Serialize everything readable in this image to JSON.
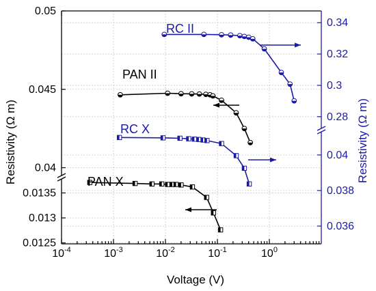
{
  "colors": {
    "left": "#000000",
    "right": "#1a1aa8",
    "grid": "#b5b5b5"
  },
  "chart_data": {
    "type": "scatter",
    "xlabel": "Voltage (V)",
    "ylabel_left": "Resistivity (Ω m)",
    "ylabel_right": "Resistivity (Ω m)",
    "xscale": "log",
    "xlim": [
      0.0001,
      10
    ],
    "x_ticks": [
      "10^-4",
      "10^-3",
      "10^-2",
      "10^-1",
      "10^0"
    ],
    "left_axis_upper": {
      "ylim": [
        0.0395,
        0.05
      ],
      "ticks": [
        "0.04",
        "0.045",
        "0.05"
      ]
    },
    "left_axis_lower": {
      "ylim": [
        0.01248,
        0.01378
      ],
      "ticks": [
        "0.0125",
        "0.013",
        "0.0135"
      ]
    },
    "right_axis_upper": {
      "ylim": [
        0.2725,
        0.3475
      ],
      "ticks": [
        "0.28",
        "0.3",
        "0.32",
        "0.34"
      ]
    },
    "right_axis_lower": {
      "ylim": [
        0.035,
        0.0413
      ],
      "ticks": [
        "0.036",
        "0.038",
        "0.04"
      ]
    },
    "grid": true,
    "series": [
      {
        "name": "PAN II",
        "axis": "left_axis_upper",
        "marker": "circle-half",
        "color": "#000000",
        "arrow": "left",
        "x": [
          0.00135,
          0.011,
          0.02,
          0.032,
          0.045,
          0.06,
          0.072,
          0.082,
          0.12,
          0.23,
          0.33,
          0.43
        ],
        "y": [
          0.04465,
          0.04475,
          0.04472,
          0.04471,
          0.0447,
          0.04468,
          0.04465,
          0.04458,
          0.0443,
          0.0435,
          0.0425,
          0.0416
        ]
      },
      {
        "name": "RC II",
        "axis": "right_axis_upper",
        "marker": "circle-half",
        "color": "#1a1aa8",
        "arrow": "right",
        "x": [
          0.0095,
          0.055,
          0.12,
          0.18,
          0.27,
          0.33,
          0.4,
          0.48,
          0.8,
          1.7,
          2.5,
          3.0
        ],
        "y": [
          0.3325,
          0.3325,
          0.3323,
          0.3321,
          0.3317,
          0.3312,
          0.3307,
          0.3297,
          0.3233,
          0.3082,
          0.3008,
          0.2901
        ]
      },
      {
        "name": "RC X",
        "axis": "right_axis_lower",
        "marker": "square-half",
        "color": "#1a1aa8",
        "arrow": "right",
        "x": [
          0.0013,
          0.009,
          0.019,
          0.028,
          0.036,
          0.044,
          0.053,
          0.063,
          0.12,
          0.23,
          0.33,
          0.41
        ],
        "y": [
          0.04098,
          0.04096,
          0.04094,
          0.04091,
          0.04089,
          0.04087,
          0.04084,
          0.04081,
          0.04064,
          0.03996,
          0.03925,
          0.03837
        ]
      },
      {
        "name": "PAN X",
        "axis": "left_axis_lower",
        "marker": "square-half",
        "color": "#000000",
        "arrow": "left",
        "x": [
          0.00035,
          0.0026,
          0.0055,
          0.0085,
          0.011,
          0.0135,
          0.016,
          0.02,
          0.033,
          0.062,
          0.084,
          0.115
        ],
        "y": [
          0.01371,
          0.01369,
          0.01368,
          0.01368,
          0.01367,
          0.01367,
          0.01367,
          0.01366,
          0.01362,
          0.01341,
          0.0131,
          0.01276
        ]
      }
    ]
  }
}
